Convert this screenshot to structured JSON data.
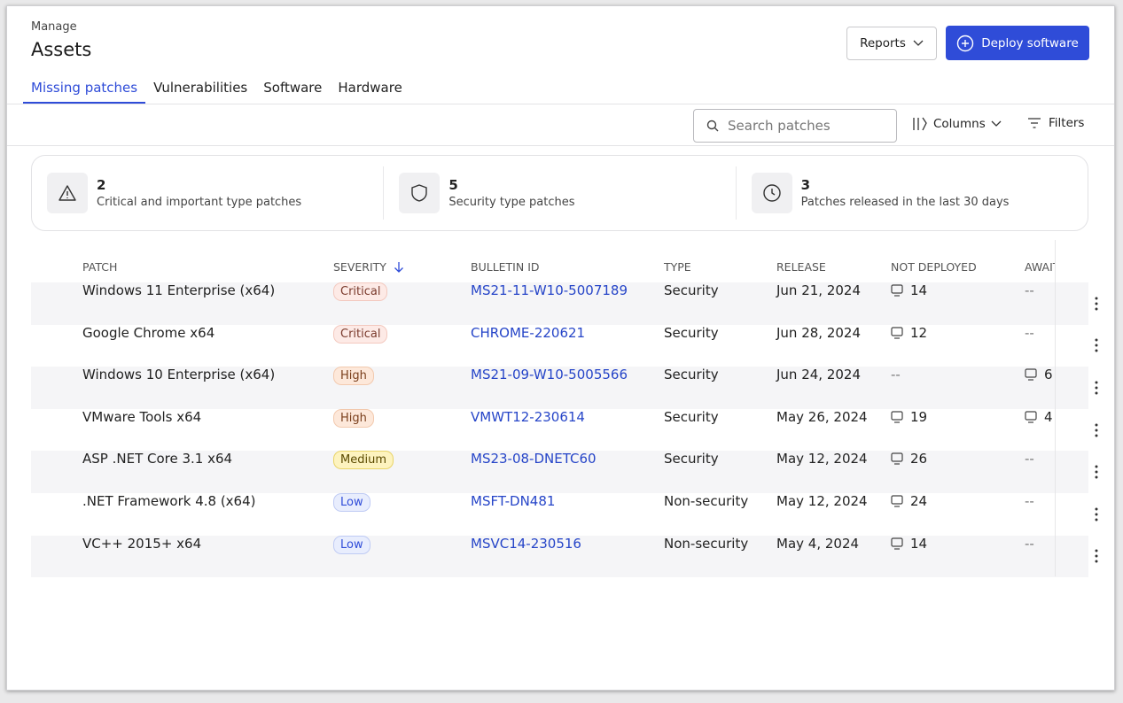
{
  "header": {
    "breadcrumb": "Manage",
    "title": "Assets",
    "reports_button": "Reports",
    "deploy_button": "Deploy software"
  },
  "tabs": {
    "items": [
      "Missing patches",
      "Vulnerabilities",
      "Software",
      "Hardware"
    ],
    "active": 0
  },
  "toolbar": {
    "search_placeholder": "Search patches",
    "columns_button": "Columns",
    "filters_button": "Filters"
  },
  "stats": [
    {
      "value": 2,
      "label": "Critical and important type patches"
    },
    {
      "value": 5,
      "label": "Security type patches"
    },
    {
      "value": 3,
      "label": "Patches released in the last 30 days"
    }
  ],
  "table": {
    "columns": [
      "PATCH",
      "SEVERITY",
      "BULLETIN ID",
      "TYPE",
      "RELEASE",
      "NOT DEPLOYED",
      "AWAITING"
    ],
    "rows": [
      [
        "Windows 11 Enterprise (x64)",
        "Critical",
        "MS21-11-W10-5007189",
        "Security",
        "Jun 21, 2024",
        14,
        "--"
      ],
      [
        "Google Chrome x64",
        "Critical",
        "CHROME-220621",
        "Security",
        "Jun 28, 2024",
        12,
        "--"
      ],
      [
        "Windows 10 Enterprise (x64)",
        "High",
        "MS21-09-W10-5005566",
        "Security",
        "Jun 24, 2024",
        "--",
        6
      ],
      [
        "VMware Tools x64",
        "High",
        "VMWT12-230614",
        "Security",
        "May 26, 2024",
        19,
        4
      ],
      [
        "ASP .NET Core 3.1 x64",
        "Medium",
        "MS23-08-DNETC60",
        "Security",
        "May 12, 2024",
        26,
        "--"
      ],
      [
        ".NET Framework 4.8 (x64)",
        "Low",
        "MSFT-DN481",
        "Non-security",
        "May 12, 2024",
        24,
        "--"
      ],
      [
        "VC++ 2015+ x64",
        "Low",
        "MSVC14-230516",
        "Non-security",
        "May 4, 2024",
        14,
        "--"
      ]
    ]
  }
}
